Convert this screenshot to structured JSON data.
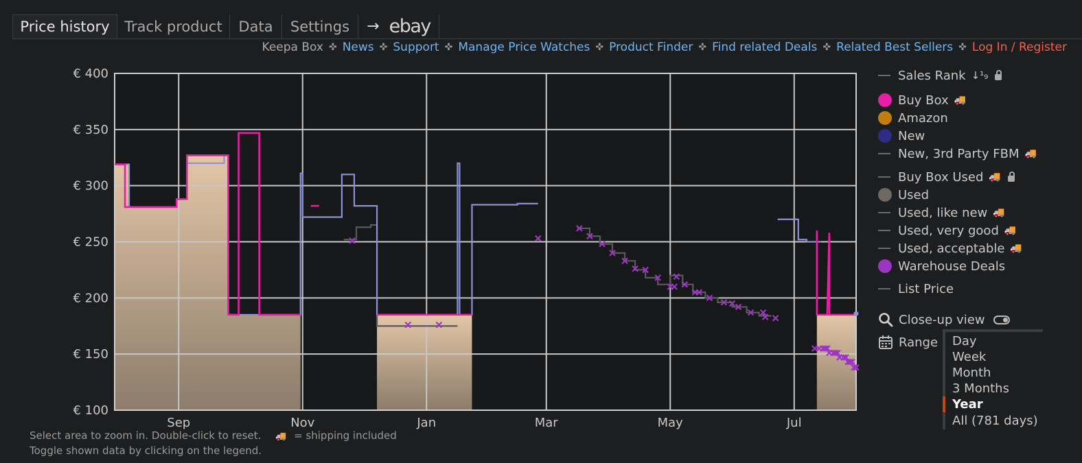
{
  "tabs": {
    "price_history": "Price history",
    "track_product": "Track product",
    "data": "Data",
    "settings": "Settings",
    "arrow": "→",
    "ebay": "ebay"
  },
  "links": {
    "keepa_box": "Keepa Box",
    "news": "News",
    "support": "Support",
    "manage": "Manage Price Watches",
    "finder": "Product Finder",
    "deals": "Find related Deals",
    "best_sellers": "Related Best Sellers",
    "login": "Log In / Register",
    "sep": "✜"
  },
  "legend": {
    "sales_rank": "Sales Rank",
    "sales_rank_icon": "↓¹₉",
    "buy_box": "Buy Box",
    "amazon": "Amazon",
    "new": "New",
    "new_fbm": "New, 3rd Party FBM",
    "buy_box_used": "Buy Box Used",
    "used": "Used",
    "used_like_new": "Used, like new",
    "used_very_good": "Used, very good",
    "used_acceptable": "Used, acceptable",
    "warehouse": "Warehouse Deals",
    "list_price": "List Price",
    "truck": "🚚"
  },
  "closeup": {
    "label": "Close-up view"
  },
  "range": {
    "label": "Range",
    "options": [
      "Day",
      "Week",
      "Month",
      "3 Months",
      "Year",
      "All (781 days)"
    ],
    "selected": "Year"
  },
  "footer": {
    "line1": "Select area to zoom in. Double-click to reset.",
    "shipping_icon": "🚚",
    "shipping_text": "= shipping included",
    "line2": "Toggle shown data by clicking on the legend."
  },
  "colors": {
    "background": "#1d1e20",
    "plot_bg": "#17181a",
    "grid": "#c8c8c8",
    "buy_box": "#e81fa5",
    "amazon": "#c27d0e",
    "new": "#8e90d8",
    "new_dot": "#2e2c86",
    "used": "#6f6963",
    "used_line": "#5a5a5a",
    "warehouse": "#9d35c2",
    "area_top": "#e3c6a6",
    "area_bottom": "#8c7c6b",
    "link": "#6cb6f7",
    "login": "#f4604a"
  },
  "chart_data": {
    "type": "line",
    "title": "Price history",
    "x_unit": "days since Aug 1",
    "ylim": [
      100,
      400
    ],
    "yticks": [
      100,
      150,
      200,
      250,
      300,
      350,
      400
    ],
    "ytick_labels": [
      "€ 100",
      "€ 150",
      "€ 200",
      "€ 250",
      "€ 300",
      "€ 350",
      "€ 400"
    ],
    "xlim": [
      15,
      374
    ],
    "xticks": [
      {
        "label": "Sep",
        "x": 46
      },
      {
        "label": "Nov",
        "x": 106
      },
      {
        "label": "Jan",
        "x": 166
      },
      {
        "label": "Mar",
        "x": 224
      },
      {
        "label": "May",
        "x": 284
      },
      {
        "label": "Jul",
        "x": 344
      }
    ],
    "grid": true,
    "legend_position": "right",
    "area_segments": [
      [
        [
          15,
          319
        ],
        [
          22,
          319
        ],
        [
          22,
          281
        ],
        [
          45,
          281
        ],
        [
          45,
          288
        ],
        [
          50,
          288
        ],
        [
          50,
          290
        ],
        [
          50,
          290
        ],
        [
          50,
          327
        ],
        [
          70,
          327
        ],
        [
          70,
          185
        ],
        [
          105,
          185
        ]
      ],
      [
        [
          142,
          185
        ],
        [
          188,
          185
        ]
      ],
      [
        [
          355,
          185
        ],
        [
          374,
          185
        ]
      ]
    ],
    "series": [
      {
        "name": "Buy Box",
        "color": "#e81fa5",
        "segments": [
          [
            [
              15,
              319
            ],
            [
              20,
              319
            ],
            [
              20,
              281
            ],
            [
              45,
              281
            ],
            [
              45,
              288
            ],
            [
              50,
              288
            ],
            [
              50,
              290
            ],
            [
              50,
              327
            ],
            [
              70,
              327
            ],
            [
              70,
              185
            ],
            [
              75,
              185
            ],
            [
              75,
              347
            ],
            [
              85,
              347
            ],
            [
              85,
              185
            ],
            [
              105,
              185
            ]
          ],
          [
            [
              110,
              282
            ],
            [
              114,
              282
            ]
          ],
          [
            [
              142,
              185
            ],
            [
              188,
              185
            ]
          ],
          [
            [
              355,
              260
            ],
            [
              355,
              185
            ],
            [
              360,
              185
            ],
            [
              361,
              258
            ],
            [
              361,
              185
            ],
            [
              374,
              185
            ]
          ]
        ]
      },
      {
        "name": "New",
        "color": "#8e90d8",
        "segments": [
          [
            [
              15,
              319
            ],
            [
              22,
              319
            ],
            [
              22,
              281
            ],
            [
              45,
              281
            ],
            [
              45,
              288
            ],
            [
              50,
              288
            ],
            [
              50,
              320
            ],
            [
              68,
              320
            ],
            [
              68,
              327
            ],
            [
              70,
              327
            ],
            [
              70,
              185
            ],
            [
              85,
              185
            ],
            [
              85,
              267
            ],
            [
              85,
              185
            ],
            [
              105,
              185
            ],
            [
              105,
              311
            ],
            [
              106,
              311
            ],
            [
              106,
              272
            ],
            [
              125,
              272
            ],
            [
              125,
              310
            ],
            [
              131,
              310
            ],
            [
              131,
              282
            ],
            [
              142,
              282
            ],
            [
              142,
              185
            ],
            [
              181,
              185
            ],
            [
              181,
              320
            ],
            [
              182,
              320
            ],
            [
              182,
              185
            ],
            [
              188,
              185
            ],
            [
              188,
              283
            ],
            [
              210,
              283
            ],
            [
              210,
              284
            ],
            [
              220,
              284
            ]
          ],
          [
            [
              336,
              270
            ],
            [
              346,
              270
            ],
            [
              346,
              252
            ],
            [
              350,
              252
            ],
            [
              350,
              250
            ],
            [
              357,
              250
            ]
          ]
        ]
      },
      {
        "name": "Used",
        "color": "#5a5a5a",
        "segments": [
          [
            [
              126,
              252
            ],
            [
              132,
              252
            ],
            [
              132,
              263
            ],
            [
              139,
              263
            ],
            [
              139,
              265
            ],
            [
              142,
              265
            ],
            [
              142,
              175
            ],
            [
              181,
              175
            ]
          ],
          [
            [
              239,
              262
            ],
            [
              245,
              262
            ],
            [
              245,
              255
            ],
            [
              250,
              255
            ],
            [
              250,
              248
            ],
            [
              256,
              248
            ],
            [
              256,
              240
            ],
            [
              262,
              240
            ],
            [
              262,
              233
            ],
            [
              267,
              233
            ],
            [
              267,
              225
            ],
            [
              272,
              225
            ],
            [
              272,
              218
            ],
            [
              278,
              218
            ],
            [
              278,
              212
            ],
            [
              284,
              212
            ],
            [
              284,
              220
            ],
            [
              290,
              220
            ],
            [
              290,
              212
            ],
            [
              295,
              212
            ],
            [
              295,
              205
            ],
            [
              301,
              205
            ],
            [
              301,
              200
            ],
            [
              307,
              200
            ],
            [
              307,
              196
            ],
            [
              314,
              196
            ],
            [
              314,
              192
            ],
            [
              321,
              192
            ],
            [
              321,
              187
            ],
            [
              327,
              187
            ],
            [
              327,
              184
            ],
            [
              333,
              184
            ]
          ]
        ]
      }
    ],
    "warehouse_deals": [
      [
        130,
        251
      ],
      [
        157,
        176
      ],
      [
        172,
        176
      ],
      [
        220,
        253
      ],
      [
        240,
        262
      ],
      [
        245,
        255
      ],
      [
        251,
        248
      ],
      [
        256,
        240
      ],
      [
        262,
        233
      ],
      [
        267,
        226
      ],
      [
        272,
        225
      ],
      [
        278,
        218
      ],
      [
        284,
        210
      ],
      [
        286,
        210
      ],
      [
        287,
        219
      ],
      [
        291,
        212
      ],
      [
        296,
        205
      ],
      [
        298,
        205
      ],
      [
        303,
        200
      ],
      [
        310,
        196
      ],
      [
        314,
        195
      ],
      [
        317,
        192
      ],
      [
        323,
        187
      ],
      [
        329,
        187
      ],
      [
        330,
        183
      ],
      [
        335,
        182
      ],
      [
        354,
        155
      ],
      [
        356,
        155
      ],
      [
        358,
        155
      ],
      [
        359,
        155
      ],
      [
        360,
        155
      ],
      [
        361,
        151
      ],
      [
        363,
        151
      ],
      [
        364,
        151
      ],
      [
        365,
        151
      ],
      [
        366,
        147
      ],
      [
        368,
        147
      ],
      [
        369,
        147
      ],
      [
        370,
        143
      ],
      [
        371,
        143
      ],
      [
        372,
        143
      ],
      [
        373,
        138
      ],
      [
        374,
        138
      ]
    ],
    "used_dots": [
      [
        374,
        186
      ]
    ]
  }
}
